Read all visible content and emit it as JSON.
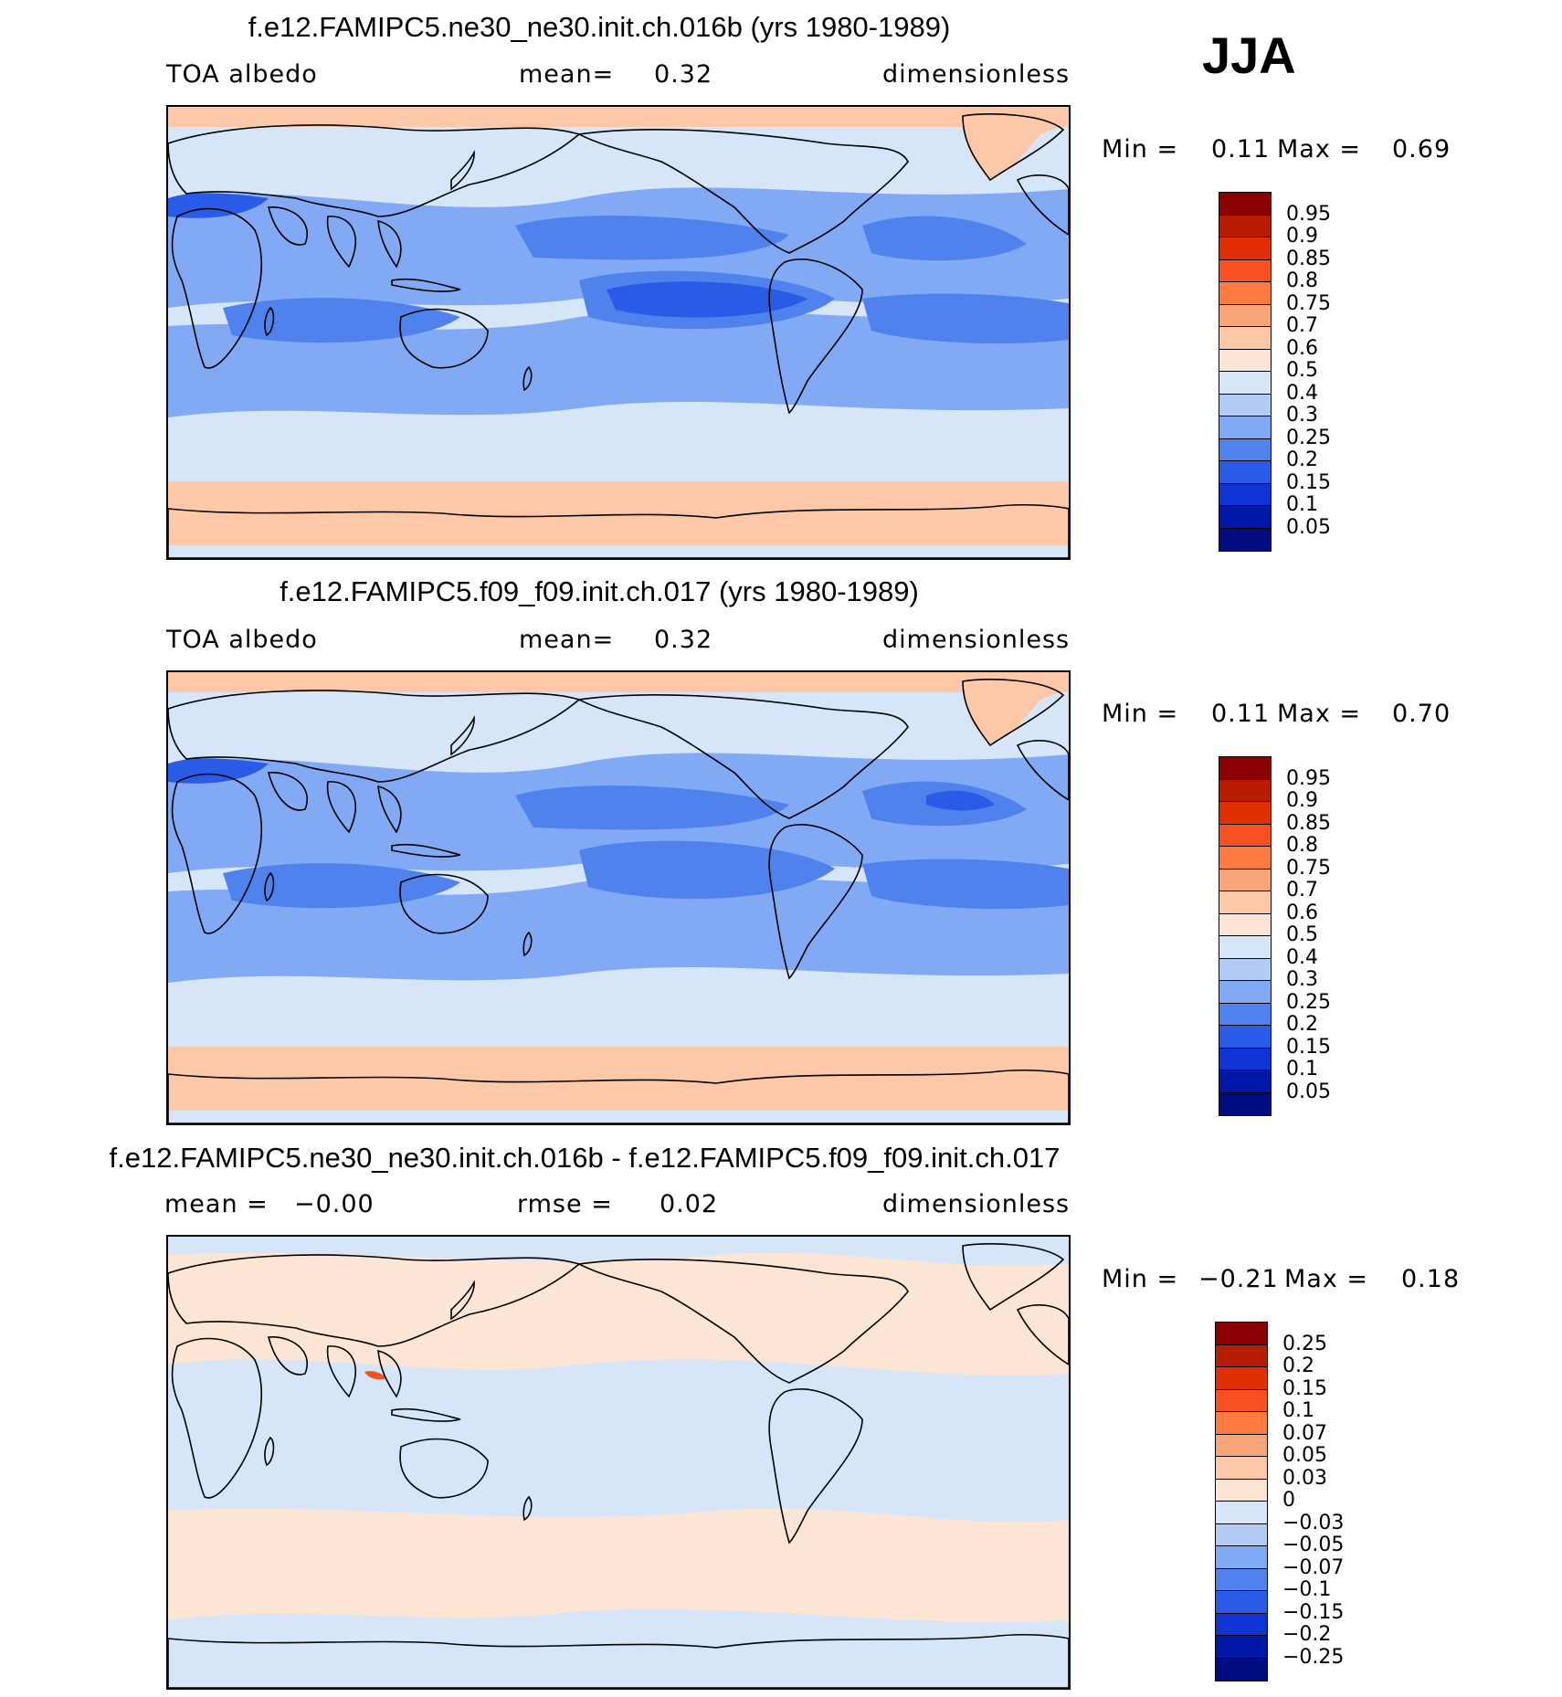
{
  "season": "JJA",
  "panels": [
    {
      "id": "p1",
      "title": "f.e12.FAMIPC5.ne30_ne30.init.ch.016b (yrs 1980-1989)",
      "left_label": "TOA  albedo",
      "mid_label": "mean=",
      "mid_value": "0.32",
      "right_label": "dimensionless",
      "min_label": "Min =",
      "min_value": "0.11",
      "max_label": "Max =",
      "max_value": "0.69"
    },
    {
      "id": "p2",
      "title": "f.e12.FAMIPC5.f09_f09.init.ch.017 (yrs 1980-1989)",
      "left_label": "TOA  albedo",
      "mid_label": "mean=",
      "mid_value": "0.32",
      "right_label": "dimensionless",
      "min_label": "Min =",
      "min_value": "0.11",
      "max_label": "Max =",
      "max_value": "0.70"
    },
    {
      "id": "p3",
      "title": "f.e12.FAMIPC5.ne30_ne30.init.ch.016b - f.e12.FAMIPC5.f09_f09.init.ch.017",
      "left_label": "mean =",
      "left_value": "−0.00",
      "mid_label": "rmse =",
      "mid_value": "0.02",
      "right_label": "dimensionless",
      "min_label": "Min =",
      "min_value": "−0.21",
      "max_label": "Max =",
      "max_value": "0.18"
    }
  ],
  "colorbars": {
    "albedo": {
      "labels": [
        "0.95",
        "0.9",
        "0.85",
        "0.8",
        "0.75",
        "0.7",
        "0.6",
        "0.5",
        "0.4",
        "0.3",
        "0.25",
        "0.2",
        "0.15",
        "0.1",
        "0.05"
      ],
      "colors": [
        "#8b0000",
        "#b71c00",
        "#e03000",
        "#f85020",
        "#ff7a40",
        "#f9a57a",
        "#fcc8a8",
        "#fde5d6",
        "#d6e6f8",
        "#b2ccf6",
        "#82a9f3",
        "#4f82ec",
        "#2a5be6",
        "#0e35d4",
        "#0018a8",
        "#000c80"
      ]
    },
    "diff": {
      "labels": [
        "0.25",
        "0.2",
        "0.15",
        "0.1",
        "0.07",
        "0.05",
        "0.03",
        "0",
        "−0.03",
        "−0.05",
        "−0.07",
        "−0.1",
        "−0.15",
        "−0.2",
        "−0.25"
      ],
      "colors": [
        "#8b0000",
        "#b71c00",
        "#e03000",
        "#f85020",
        "#ff7a40",
        "#f9a57a",
        "#fcc8a8",
        "#fde5d6",
        "#d6e6f8",
        "#b2ccf6",
        "#82a9f3",
        "#4f82ec",
        "#2a5be6",
        "#0e35d4",
        "#0018a8",
        "#000c80"
      ]
    }
  },
  "fill_colors": {
    "albedo_background": "#d6e6f8",
    "albedo_polar": "#fcc8a8",
    "albedo_mid": "#82a9f3",
    "albedo_low": "#4f82ec",
    "albedo_lowest": "#2a5be6",
    "diff_background": "#d6e6f8",
    "diff_pos": "#fde5d6",
    "coastline": "#000000"
  }
}
